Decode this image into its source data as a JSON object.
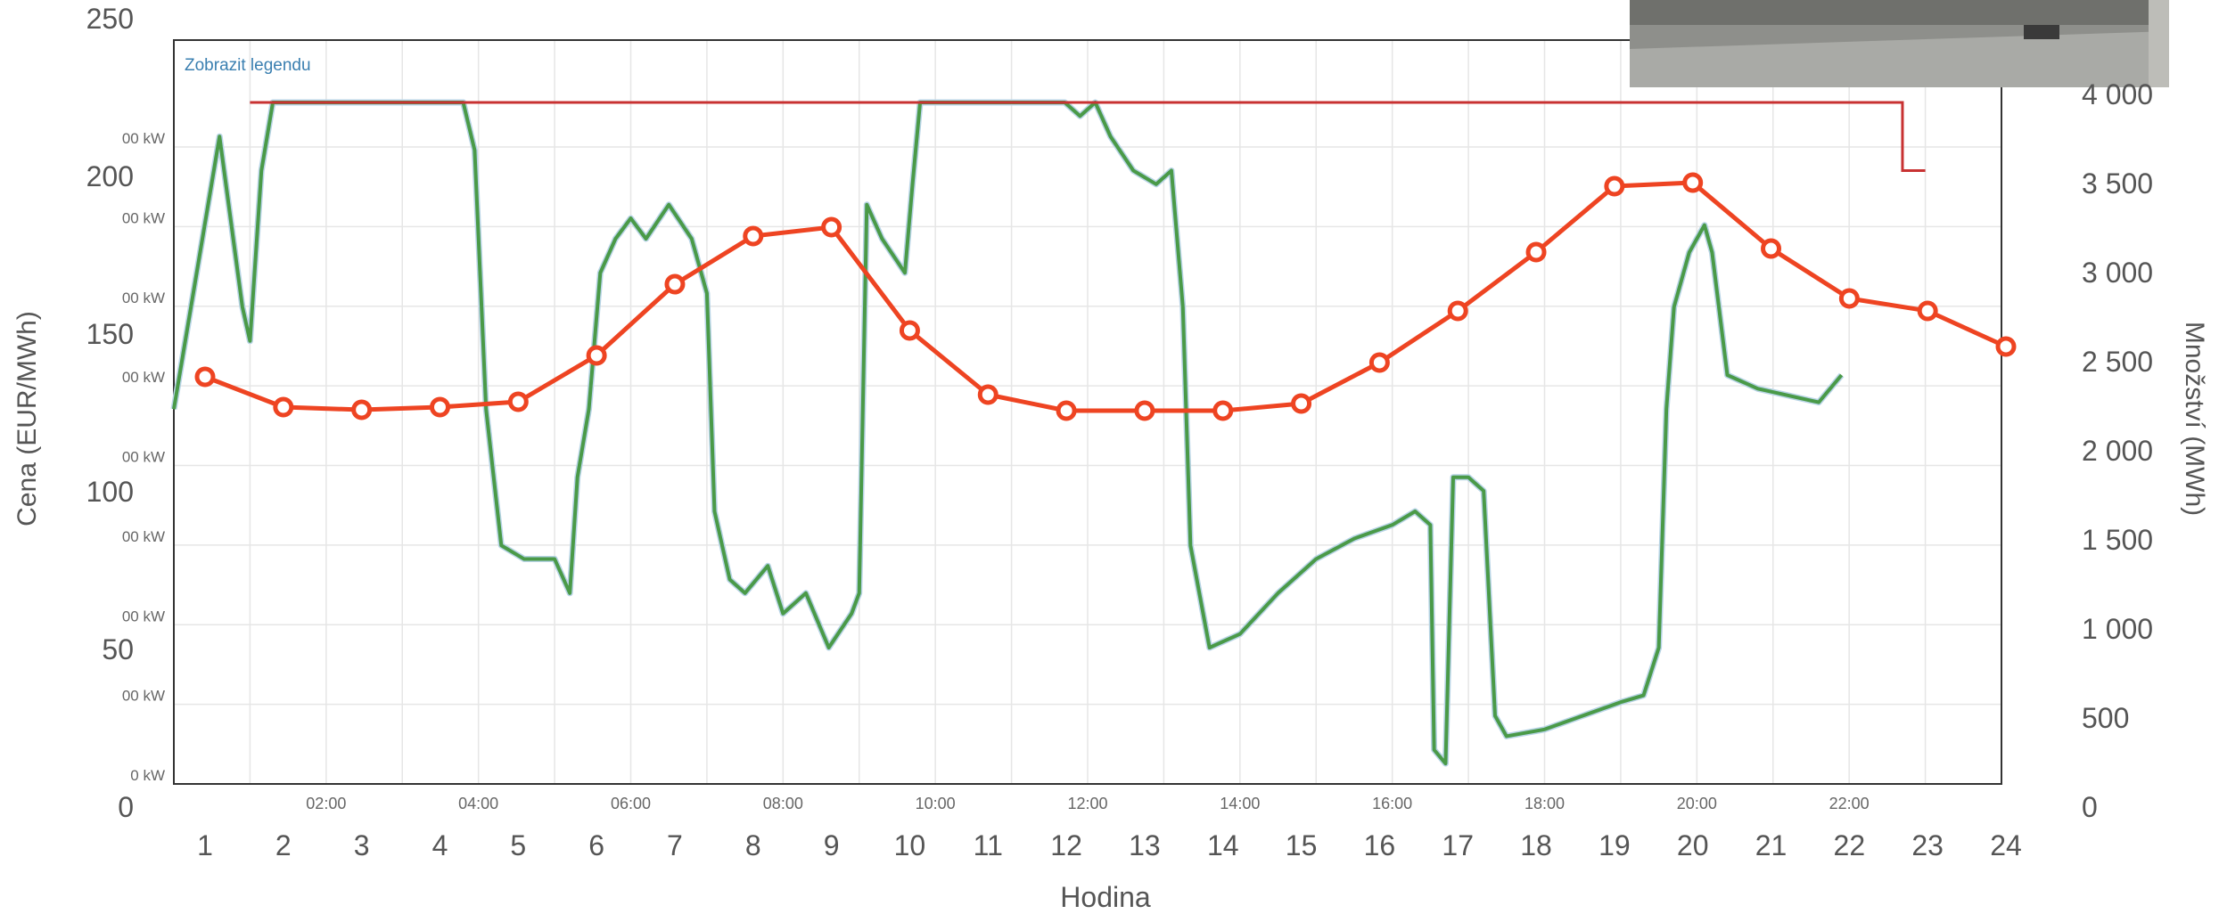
{
  "chart_data": {
    "type": "line",
    "title": "",
    "legend_toggle": "Zobrazit legendu",
    "xlabel": "Hodina",
    "ylabel_left": "Cena (EUR/MWh)",
    "ylabel_right": "Množství (MWh)",
    "x_categories": [
      1,
      2,
      3,
      4,
      5,
      6,
      7,
      8,
      9,
      10,
      11,
      12,
      13,
      14,
      15,
      16,
      17,
      18,
      19,
      20,
      21,
      22,
      23,
      24
    ],
    "x_tick_labels": [
      "1",
      "2",
      "3",
      "4",
      "5",
      "6",
      "7",
      "8",
      "9",
      "10",
      "11",
      "12",
      "13",
      "14",
      "15",
      "16",
      "17",
      "18",
      "19",
      "20",
      "21",
      "22",
      "23",
      "24"
    ],
    "left_axis": {
      "ticks": [
        0,
        50,
        100,
        150,
        200,
        250
      ],
      "tick_labels": [
        "0",
        "50",
        "100",
        "150",
        "200",
        "250"
      ],
      "ylim": [
        0,
        250
      ]
    },
    "right_axis": {
      "ticks": [
        0,
        500,
        1000,
        1500,
        2000,
        2500,
        3000,
        3500,
        4000
      ],
      "tick_labels": [
        "0",
        "500",
        "1 000",
        "1 500",
        "2 000",
        "2 500",
        "3 000",
        "3 500",
        "4 000"
      ],
      "ylim": [
        0,
        4500
      ]
    },
    "grid": true,
    "series": [
      {
        "axis": "right",
        "color": "#ee4422",
        "values": [
          2410,
          2240,
          2225,
          2240,
          2270,
          2530,
          2930,
          3200,
          3250,
          2670,
          2310,
          2220,
          2220,
          2220,
          2260,
          2490,
          2780,
          3110,
          3480,
          3500,
          3130,
          2850,
          2780,
          2580
        ]
      }
    ],
    "overlay_chart": {
      "type": "line",
      "time_labels": [
        "02:00",
        "04:00",
        "06:00",
        "08:00",
        "10:00",
        "12:00",
        "14:00",
        "16:00",
        "18:00",
        "20:00",
        "22:00"
      ],
      "y_tick_labels": [
        "00 kW",
        "00 kW",
        "00 kW",
        "00 kW",
        "00 kW",
        "00 kW",
        "00 kW",
        "00 kW",
        "0 kW"
      ],
      "series": [
        {
          "color": "#4a9a48",
          "points": [
            [
              0.0,
              0.55
            ],
            [
              0.3,
              0.75
            ],
            [
              0.6,
              0.95
            ],
            [
              0.9,
              0.7
            ],
            [
              1.0,
              0.65
            ],
            [
              1.15,
              0.9
            ],
            [
              1.3,
              1.0
            ],
            [
              1.5,
              1.0
            ],
            [
              2.0,
              1.0
            ],
            [
              3.0,
              1.0
            ],
            [
              3.8,
              1.0
            ],
            [
              3.95,
              0.93
            ],
            [
              4.1,
              0.55
            ],
            [
              4.3,
              0.35
            ],
            [
              4.6,
              0.33
            ],
            [
              5.0,
              0.33
            ],
            [
              5.2,
              0.28
            ],
            [
              5.3,
              0.45
            ],
            [
              5.45,
              0.55
            ],
            [
              5.6,
              0.75
            ],
            [
              5.8,
              0.8
            ],
            [
              6.0,
              0.83
            ],
            [
              6.2,
              0.8
            ],
            [
              6.5,
              0.85
            ],
            [
              6.8,
              0.8
            ],
            [
              7.0,
              0.72
            ],
            [
              7.1,
              0.4
            ],
            [
              7.3,
              0.3
            ],
            [
              7.5,
              0.28
            ],
            [
              7.8,
              0.32
            ],
            [
              8.0,
              0.25
            ],
            [
              8.3,
              0.28
            ],
            [
              8.6,
              0.2
            ],
            [
              8.9,
              0.25
            ],
            [
              9.0,
              0.28
            ],
            [
              9.1,
              0.85
            ],
            [
              9.3,
              0.8
            ],
            [
              9.6,
              0.75
            ],
            [
              9.7,
              0.88
            ],
            [
              9.8,
              1.0
            ],
            [
              10.2,
              1.0
            ],
            [
              11.0,
              1.0
            ],
            [
              11.7,
              1.0
            ],
            [
              11.9,
              0.98
            ],
            [
              12.1,
              1.0
            ],
            [
              12.3,
              0.95
            ],
            [
              12.6,
              0.9
            ],
            [
              12.9,
              0.88
            ],
            [
              13.1,
              0.9
            ],
            [
              13.25,
              0.7
            ],
            [
              13.35,
              0.35
            ],
            [
              13.6,
              0.2
            ],
            [
              14.0,
              0.22
            ],
            [
              14.5,
              0.28
            ],
            [
              15.0,
              0.33
            ],
            [
              15.5,
              0.36
            ],
            [
              16.0,
              0.38
            ],
            [
              16.3,
              0.4
            ],
            [
              16.5,
              0.38
            ],
            [
              16.55,
              0.05
            ],
            [
              16.7,
              0.03
            ],
            [
              16.8,
              0.45
            ],
            [
              17.0,
              0.45
            ],
            [
              17.2,
              0.43
            ],
            [
              17.35,
              0.1
            ],
            [
              17.5,
              0.07
            ],
            [
              18.0,
              0.08
            ],
            [
              18.5,
              0.1
            ],
            [
              19.0,
              0.12
            ],
            [
              19.3,
              0.13
            ],
            [
              19.5,
              0.2
            ],
            [
              19.6,
              0.55
            ],
            [
              19.7,
              0.7
            ],
            [
              19.9,
              0.78
            ],
            [
              20.1,
              0.82
            ],
            [
              20.2,
              0.78
            ],
            [
              20.4,
              0.6
            ],
            [
              20.8,
              0.58
            ],
            [
              21.2,
              0.57
            ],
            [
              21.6,
              0.56
            ],
            [
              21.9,
              0.6
            ]
          ]
        }
      ],
      "limit_line": {
        "color": "#c83232",
        "points": [
          [
            0,
            1.05
          ],
          [
            21.7,
            1.05
          ],
          [
            21.7,
            0.95
          ],
          [
            22,
            0.95
          ]
        ]
      }
    }
  }
}
